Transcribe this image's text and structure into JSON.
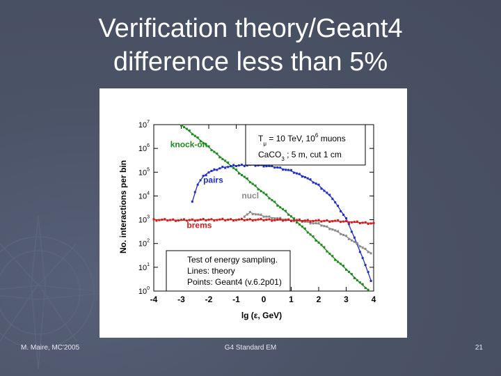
{
  "slide": {
    "title_line1": "Verification theory/Geant4",
    "title_line2": "difference less than 5%",
    "footer_left": "M. Maire, MC'2005",
    "footer_center": "G4 Standard EM",
    "footer_right": "21"
  },
  "colors": {
    "background": "#4b5367",
    "knock_on": "#1c8a1c",
    "pairs": "#1f2ec8",
    "nucl": "#8a8a8a",
    "brems": "#d41a1a"
  },
  "chart_data": {
    "type": "line",
    "xlabel": "lg (ε, GeV)",
    "ylabel": "No. interactions per bin",
    "xlim": [
      -4,
      4
    ],
    "ylim": [
      0,
      7
    ],
    "yscale": "log",
    "x_ticks": [
      -4,
      -3,
      -2,
      -1,
      0,
      1,
      2,
      3,
      4
    ],
    "x_tick_labels": [
      "-4",
      "-3",
      "-2",
      "-1",
      "0",
      "1",
      "2",
      "3",
      "4"
    ],
    "y_ticks": [
      0,
      1,
      2,
      3,
      4,
      5,
      6,
      7
    ],
    "y_tick_base": "10",
    "y_tick_exponents": [
      "0",
      "1",
      "2",
      "3",
      "4",
      "5",
      "6",
      "7"
    ],
    "info_box": {
      "line1_a": "T",
      "line1_sub": "μ",
      "line1_b": " = 10 TeV, 10",
      "line1_sup": "6",
      "line1_c": " muons",
      "line2_a": "CaCO",
      "line2_sub": "3",
      "line2_b": " ; 5 m, cut 1 cm"
    },
    "legend_box": {
      "line1": "Test of energy sampling.",
      "line2": "Lines:  theory",
      "line3": "Points: Geant4 (v.6.2p01)"
    },
    "series": [
      {
        "name": "knock-on",
        "color": "#1c8a1c",
        "label_at": [
          -3.4,
          6.05
        ],
        "x": [
          -3.0,
          -2.0,
          -1.0,
          0.0,
          1.0,
          2.0,
          2.5,
          3.0,
          3.5,
          3.8
        ],
        "y": [
          7.0,
          6.05,
          5.08,
          4.12,
          3.14,
          2.05,
          1.45,
          0.92,
          0.35,
          0.05
        ]
      },
      {
        "name": "pairs",
        "color": "#1f2ec8",
        "label_at": [
          -2.2,
          4.55
        ],
        "x": [
          -2.6,
          -2.4,
          -2.2,
          -2.0,
          -1.5,
          -1.0,
          -0.5,
          0.0,
          0.5,
          1.0,
          1.5,
          2.0,
          2.5,
          3.0,
          3.3,
          3.6,
          3.9
        ],
        "y": [
          3.75,
          4.5,
          4.82,
          5.0,
          5.2,
          5.28,
          5.3,
          5.28,
          5.2,
          5.05,
          4.8,
          4.45,
          3.9,
          3.05,
          2.25,
          1.4,
          0.45
        ]
      },
      {
        "name": "nucl",
        "color": "#8a8a8a",
        "label_at": [
          -0.8,
          3.9
        ],
        "x": [
          -0.7,
          -0.5,
          0.0,
          0.5,
          1.0,
          1.5,
          2.0,
          2.5,
          3.0,
          3.5,
          3.9
        ],
        "y": [
          3.15,
          3.3,
          3.15,
          3.05,
          2.98,
          2.92,
          2.82,
          2.6,
          2.3,
          1.9,
          1.6
        ]
      },
      {
        "name": "brems",
        "color": "#d41a1a",
        "label_at": [
          -2.8,
          2.65
        ],
        "x": [
          -4.0,
          -3.0,
          -2.0,
          -1.0,
          0.0,
          1.0,
          2.0,
          2.5,
          3.0,
          3.5,
          4.0
        ],
        "y": [
          3.0,
          2.98,
          3.0,
          3.0,
          3.0,
          2.98,
          2.95,
          2.95,
          2.92,
          2.88,
          2.85
        ]
      }
    ]
  }
}
